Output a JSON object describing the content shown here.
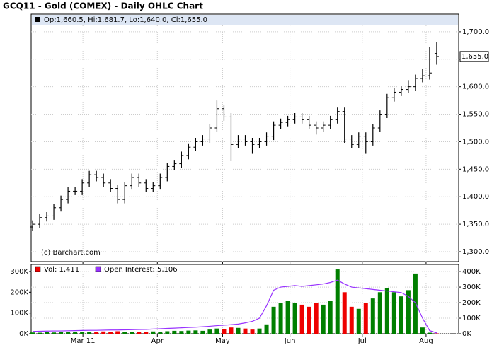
{
  "chart_data": [
    {
      "type": "ohlc",
      "title": "GCQ11 - Gold (COMEX) - Daily OHLC Chart",
      "legend": "Op:1,660.5, Hi:1,681.7, Lo:1,640.0, Cl:1,655.0",
      "last_label": "1,655.0",
      "credit": "(c) Barchart.com",
      "color": "#000000",
      "grid": true,
      "open": [
        1345,
        1350,
        1362,
        1365,
        1380,
        1395,
        1410,
        1410,
        1425,
        1440,
        1435,
        1425,
        1415,
        1395,
        1420,
        1435,
        1425,
        1415,
        1420,
        1435,
        1455,
        1460,
        1475,
        1490,
        1500,
        1505,
        1525,
        1560,
        1545,
        1495,
        1505,
        1500,
        1495,
        1500,
        1510,
        1530,
        1535,
        1540,
        1545,
        1540,
        1530,
        1525,
        1530,
        1540,
        1555,
        1505,
        1495,
        1510,
        1500,
        1525,
        1550,
        1580,
        1590,
        1595,
        1600,
        1615,
        1620,
        1660.5
      ],
      "high": [
        1357,
        1369,
        1372,
        1387,
        1402,
        1417,
        1417,
        1432,
        1447,
        1447,
        1442,
        1432,
        1422,
        1427,
        1442,
        1442,
        1432,
        1427,
        1442,
        1462,
        1467,
        1482,
        1497,
        1507,
        1512,
        1532,
        1575,
        1567,
        1552,
        1512,
        1512,
        1507,
        1507,
        1517,
        1537,
        1542,
        1547,
        1552,
        1552,
        1547,
        1537,
        1537,
        1547,
        1562,
        1562,
        1512,
        1517,
        1517,
        1532,
        1557,
        1587,
        1597,
        1602,
        1612,
        1622,
        1632,
        1672,
        1681.7
      ],
      "low": [
        1338,
        1343,
        1355,
        1358,
        1373,
        1388,
        1403,
        1403,
        1418,
        1428,
        1418,
        1408,
        1388,
        1388,
        1413,
        1418,
        1408,
        1408,
        1413,
        1428,
        1448,
        1453,
        1468,
        1483,
        1493,
        1498,
        1518,
        1538,
        1465,
        1488,
        1493,
        1478,
        1488,
        1493,
        1503,
        1523,
        1528,
        1533,
        1533,
        1523,
        1513,
        1518,
        1523,
        1533,
        1498,
        1488,
        1488,
        1478,
        1493,
        1518,
        1543,
        1573,
        1583,
        1588,
        1593,
        1608,
        1613,
        1640.0
      ],
      "close": [
        1350,
        1362,
        1365,
        1380,
        1395,
        1410,
        1410,
        1425,
        1440,
        1435,
        1425,
        1415,
        1395,
        1420,
        1435,
        1425,
        1415,
        1420,
        1435,
        1455,
        1460,
        1475,
        1490,
        1500,
        1505,
        1525,
        1560,
        1545,
        1495,
        1505,
        1500,
        1495,
        1500,
        1510,
        1530,
        1535,
        1540,
        1545,
        1540,
        1530,
        1525,
        1530,
        1540,
        1555,
        1505,
        1495,
        1510,
        1500,
        1525,
        1550,
        1580,
        1590,
        1595,
        1600,
        1615,
        1620,
        1625,
        1655.0
      ],
      "ylim": [
        1282,
        1732
      ],
      "yticks": [
        {
          "value": 1300,
          "label": "1,300.0"
        },
        {
          "value": 1350,
          "label": "1,350.0"
        },
        {
          "value": 1400,
          "label": "1,400.0"
        },
        {
          "value": 1450,
          "label": "1,450.0"
        },
        {
          "value": 1500,
          "label": "1,500.0"
        },
        {
          "value": 1550,
          "label": "1,550.0"
        },
        {
          "value": 1600,
          "label": "1,600.0"
        },
        {
          "value": 1650,
          "label": "1,650.0"
        },
        {
          "value": 1700,
          "label": "1,700.0"
        }
      ],
      "xlim": [
        -0.2,
        60.1
      ],
      "xticks": [
        {
          "value": 7.1,
          "label": "Mar 11"
        },
        {
          "value": 17.6,
          "label": "Apr"
        },
        {
          "value": 26.8,
          "label": "May"
        },
        {
          "value": 36.3,
          "label": "Jun"
        },
        {
          "value": 46.5,
          "label": "Jul"
        },
        {
          "value": 55.5,
          "label": "Aug"
        }
      ]
    },
    {
      "type": "volume",
      "up_color": "#007f00",
      "down_color": "#ee0000",
      "grid": true,
      "series": [
        {
          "name": "Vol: 1,411",
          "color": "#ee0000",
          "values": [
            6000,
            5000,
            7000,
            6000,
            8000,
            9000,
            7000,
            10000,
            8000,
            9000,
            11000,
            10000,
            12000,
            9000,
            10000,
            8000,
            9000,
            11000,
            10000,
            12000,
            14000,
            13000,
            15000,
            16000,
            14000,
            20000,
            25000,
            22000,
            30000,
            28000,
            25000,
            20000,
            25000,
            45000,
            130000,
            150000,
            160000,
            150000,
            140000,
            130000,
            150000,
            140000,
            160000,
            310000,
            200000,
            130000,
            120000,
            150000,
            170000,
            200000,
            220000,
            200000,
            180000,
            210000,
            290000,
            30000,
            5000,
            1411
          ]
        },
        {
          "name": "Open Interest: 5,106",
          "color": "#9933ff",
          "axis": "y2",
          "values": [
            15000,
            16000,
            17000,
            18000,
            18000,
            19000,
            20000,
            21000,
            22000,
            22000,
            23000,
            24000,
            24000,
            25000,
            26000,
            27000,
            28000,
            30000,
            32000,
            34000,
            36000,
            38000,
            40000,
            42000,
            45000,
            48000,
            52000,
            55000,
            58000,
            62000,
            70000,
            80000,
            100000,
            180000,
            280000,
            300000,
            305000,
            310000,
            305000,
            310000,
            315000,
            320000,
            330000,
            345000,
            320000,
            300000,
            295000,
            290000,
            285000,
            280000,
            275000,
            270000,
            265000,
            240000,
            200000,
            100000,
            20000,
            5106
          ]
        }
      ],
      "ylim": [
        0,
        334000
      ],
      "yticks": [
        {
          "value": 0,
          "label": "0K"
        },
        {
          "value": 100000,
          "label": "100K"
        },
        {
          "value": 200000,
          "label": "200K"
        },
        {
          "value": 300000,
          "label": "300K"
        }
      ],
      "y2lim": [
        0,
        446000
      ],
      "y2ticks": [
        {
          "value": 0,
          "label": "0K"
        },
        {
          "value": 100000,
          "label": "100K"
        },
        {
          "value": 200000,
          "label": "200K"
        },
        {
          "value": 300000,
          "label": "300K"
        },
        {
          "value": 400000,
          "label": "400K"
        }
      ],
      "xlim": [
        -0.2,
        60.1
      ],
      "xticks": [
        {
          "value": 7.1,
          "label": "Mar 11"
        },
        {
          "value": 17.6,
          "label": "Apr"
        },
        {
          "value": 26.8,
          "label": "May"
        },
        {
          "value": 36.3,
          "label": "Jun"
        },
        {
          "value": 46.5,
          "label": "Jul"
        },
        {
          "value": 55.5,
          "label": "Aug"
        }
      ]
    }
  ]
}
